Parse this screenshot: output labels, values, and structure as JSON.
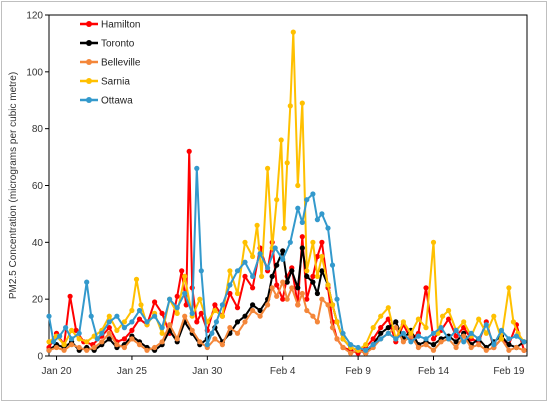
{
  "chart_data": {
    "type": "line",
    "title": "",
    "xlabel": "",
    "ylabel": "PM2.5 Concentration (micrograms per cubic metre)",
    "ylim": [
      0,
      120
    ],
    "yticks": [
      0,
      20,
      40,
      60,
      80,
      100,
      120
    ],
    "xlim": [
      19.5,
      51.2
    ],
    "xticks": [
      {
        "label": "Jan 20",
        "x": 20
      },
      {
        "label": "Jan 25",
        "x": 25
      },
      {
        "label": "Jan 30",
        "x": 30
      },
      {
        "label": "Feb 4",
        "x": 35
      },
      {
        "label": "Feb 9",
        "x": 40
      },
      {
        "label": "Feb 14",
        "x": 45
      },
      {
        "label": "Feb 19",
        "x": 50
      }
    ],
    "grid": false,
    "legend_position": "top-left",
    "series": [
      {
        "name": "Hamilton",
        "color": "#ff0000",
        "x": [
          19.5,
          20.0,
          20.5,
          20.9,
          21.3,
          21.8,
          22.4,
          23.0,
          23.5,
          24.0,
          24.5,
          25.0,
          25.5,
          26.0,
          26.5,
          27.0,
          27.5,
          28.0,
          28.3,
          28.6,
          28.8,
          29.0,
          29.3,
          29.6,
          30.0,
          30.5,
          31.0,
          31.5,
          32.0,
          32.5,
          33.0,
          33.5,
          34.0,
          34.3,
          34.6,
          35.0,
          35.3,
          35.6,
          36.0,
          36.3,
          36.6,
          37.0,
          37.3,
          37.6,
          38.0,
          38.3,
          38.6,
          39.0,
          39.5,
          40.0,
          40.5,
          41.0,
          41.5,
          42.0,
          42.5,
          43.0,
          43.5,
          44.0,
          44.5,
          45.0,
          45.5,
          46.0,
          46.5,
          47.0,
          47.5,
          48.0,
          48.5,
          49.0,
          49.5,
          50.0,
          50.5,
          51.0
        ],
        "y": [
          3,
          8,
          4,
          21,
          9,
          5,
          4,
          7,
          10,
          5,
          6,
          9,
          13,
          11,
          19,
          15,
          8,
          21,
          30,
          18,
          72,
          24,
          12,
          15,
          9,
          18,
          14,
          22,
          17,
          28,
          24,
          38,
          30,
          40,
          25,
          20,
          28,
          31,
          18,
          42,
          20,
          28,
          35,
          40,
          24,
          12,
          6,
          3,
          2,
          1,
          3,
          6,
          10,
          13,
          5,
          11,
          6,
          8,
          24,
          6,
          9,
          13,
          7,
          10,
          6,
          5,
          12,
          3,
          6,
          4,
          11,
          2
        ]
      },
      {
        "name": "Toronto",
        "color": "#000000",
        "x": [
          19.5,
          20.0,
          20.5,
          21.0,
          21.5,
          22.0,
          22.5,
          23.0,
          23.5,
          24.0,
          24.5,
          25.0,
          25.5,
          26.0,
          26.5,
          27.0,
          27.5,
          28.0,
          28.5,
          29.0,
          29.5,
          30.0,
          30.5,
          31.0,
          31.5,
          32.0,
          32.5,
          33.0,
          33.5,
          34.0,
          34.3,
          34.6,
          35.0,
          35.3,
          35.6,
          36.0,
          36.3,
          36.6,
          37.0,
          37.3,
          37.6,
          38.0,
          38.3,
          38.6,
          39.0,
          39.5,
          40.0,
          40.5,
          41.0,
          41.5,
          42.0,
          42.5,
          43.0,
          43.5,
          44.0,
          44.5,
          45.0,
          45.5,
          46.0,
          46.5,
          47.0,
          47.5,
          48.0,
          48.5,
          49.0,
          49.5,
          50.0,
          50.5,
          51.0
        ],
        "y": [
          2,
          4,
          3,
          5,
          2,
          3,
          2,
          4,
          6,
          3,
          4,
          7,
          5,
          3,
          2,
          4,
          9,
          5,
          12,
          8,
          4,
          6,
          10,
          5,
          8,
          12,
          14,
          18,
          16,
          20,
          28,
          32,
          37,
          26,
          30,
          24,
          38,
          28,
          26,
          22,
          30,
          25,
          18,
          12,
          6,
          3,
          2,
          1,
          4,
          8,
          10,
          12,
          6,
          9,
          4,
          5,
          4,
          6,
          7,
          5,
          8,
          4,
          6,
          3,
          5,
          7,
          4,
          3,
          5
        ]
      },
      {
        "name": "Belleville",
        "color": "#f4873a",
        "x": [
          19.5,
          20.0,
          20.5,
          21.0,
          21.5,
          22.0,
          22.5,
          23.0,
          23.5,
          24.0,
          24.5,
          25.0,
          25.5,
          26.0,
          26.5,
          27.0,
          27.5,
          28.0,
          28.5,
          29.0,
          29.5,
          30.0,
          30.5,
          31.0,
          31.5,
          32.0,
          32.5,
          33.0,
          33.5,
          34.0,
          34.3,
          34.6,
          35.0,
          35.3,
          35.6,
          36.0,
          36.3,
          36.6,
          37.0,
          37.3,
          37.6,
          38.0,
          38.3,
          38.6,
          39.0,
          39.5,
          40.0,
          40.5,
          41.0,
          41.5,
          42.0,
          42.5,
          43.0,
          43.5,
          44.0,
          44.5,
          45.0,
          45.5,
          46.0,
          46.5,
          47.0,
          47.5,
          48.0,
          48.5,
          49.0,
          49.5,
          50.0,
          50.5,
          51.0
        ],
        "y": [
          2,
          3,
          2,
          4,
          3,
          2,
          3,
          5,
          8,
          4,
          3,
          6,
          4,
          2,
          3,
          5,
          11,
          6,
          14,
          9,
          5,
          3,
          6,
          4,
          10,
          8,
          12,
          16,
          14,
          18,
          24,
          21,
          26,
          20,
          24,
          18,
          22,
          16,
          14,
          12,
          20,
          18,
          10,
          6,
          3,
          1,
          2,
          1,
          3,
          6,
          8,
          10,
          5,
          7,
          3,
          4,
          2,
          5,
          6,
          3,
          7,
          3,
          4,
          2,
          3,
          6,
          2,
          3,
          2
        ]
      },
      {
        "name": "Sarnia",
        "color": "#ffc000",
        "x": [
          19.5,
          20.0,
          20.5,
          21.0,
          21.5,
          22.0,
          22.5,
          23.0,
          23.5,
          24.0,
          24.5,
          25.0,
          25.3,
          25.6,
          26.0,
          26.5,
          27.0,
          27.5,
          28.0,
          28.5,
          29.0,
          29.5,
          30.0,
          30.5,
          31.0,
          31.5,
          32.0,
          32.5,
          33.0,
          33.3,
          33.6,
          34.0,
          34.3,
          34.6,
          34.9,
          35.1,
          35.3,
          35.5,
          35.7,
          36.0,
          36.3,
          36.6,
          37.0,
          37.3,
          37.6,
          38.0,
          38.3,
          38.6,
          39.0,
          39.5,
          40.0,
          40.5,
          41.0,
          41.5,
          42.0,
          42.5,
          43.0,
          43.5,
          44.0,
          44.5,
          45.0,
          45.3,
          45.6,
          46.0,
          46.5,
          47.0,
          47.5,
          48.0,
          48.5,
          49.0,
          49.5,
          50.0,
          50.3,
          50.6,
          51.0
        ],
        "y": [
          5,
          7,
          4,
          9,
          6,
          5,
          7,
          9,
          14,
          9,
          12,
          16,
          27,
          18,
          11,
          15,
          8,
          20,
          15,
          28,
          14,
          20,
          12,
          16,
          14,
          30,
          22,
          40,
          35,
          46,
          28,
          66,
          38,
          55,
          76,
          45,
          68,
          88,
          114,
          60,
          89,
          30,
          40,
          28,
          35,
          25,
          18,
          12,
          6,
          3,
          2,
          4,
          10,
          14,
          17,
          6,
          12,
          8,
          13,
          10,
          40,
          8,
          14,
          16,
          9,
          12,
          7,
          13,
          8,
          14,
          6,
          24,
          12,
          8,
          5
        ]
      },
      {
        "name": "Ottawa",
        "color": "#3399cc",
        "x": [
          19.5,
          19.8,
          20.2,
          20.6,
          21.0,
          21.5,
          22.0,
          22.3,
          22.7,
          23.0,
          23.5,
          24.0,
          24.5,
          25.0,
          25.5,
          26.0,
          26.5,
          27.0,
          27.5,
          28.0,
          28.5,
          29.0,
          29.3,
          29.6,
          30.0,
          30.3,
          30.6,
          31.0,
          31.5,
          32.0,
          32.5,
          33.0,
          33.5,
          34.0,
          34.5,
          35.0,
          35.5,
          36.0,
          36.3,
          36.6,
          37.0,
          37.3,
          37.6,
          38.0,
          38.3,
          38.6,
          39.0,
          39.5,
          40.0,
          40.5,
          41.0,
          41.5,
          42.0,
          42.5,
          43.0,
          43.5,
          44.0,
          44.5,
          45.0,
          45.5,
          46.0,
          46.5,
          47.0,
          47.5,
          48.0,
          48.5,
          49.0,
          49.5,
          50.0,
          50.5,
          51.0
        ],
        "y": [
          14,
          5,
          7,
          10,
          6,
          8,
          26,
          14,
          6,
          8,
          12,
          14,
          10,
          12,
          16,
          12,
          14,
          10,
          20,
          17,
          22,
          15,
          66,
          30,
          4,
          8,
          12,
          18,
          25,
          30,
          33,
          28,
          36,
          31,
          38,
          34,
          40,
          52,
          47,
          55,
          57,
          48,
          50,
          45,
          32,
          20,
          8,
          4,
          3,
          2,
          4,
          6,
          8,
          6,
          8,
          5,
          7,
          6,
          8,
          10,
          6,
          9,
          5,
          8,
          6,
          11,
          4,
          9,
          6,
          7,
          5
        ]
      }
    ]
  }
}
